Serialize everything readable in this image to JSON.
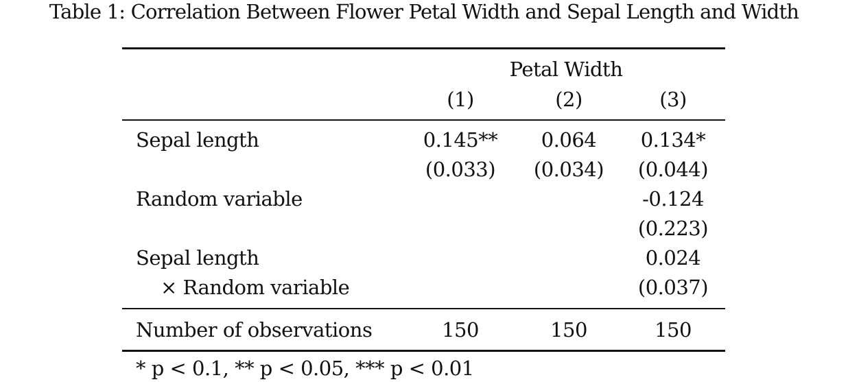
{
  "caption": "Table 1: Correlation Between Flower Petal Width and Sepal Length and Width",
  "table": {
    "dependent_variable": "Petal Width",
    "columns": [
      "(1)",
      "(2)",
      "(3)"
    ],
    "rows": [
      {
        "label": "Sepal length",
        "coef": [
          "0.145**",
          "0.064",
          "0.134*"
        ],
        "se": [
          "(0.033)",
          "(0.034)",
          "(0.044)"
        ]
      },
      {
        "label": "Random variable",
        "coef": [
          "",
          "",
          "-0.124"
        ],
        "se": [
          "",
          "",
          "(0.223)"
        ]
      },
      {
        "label": "Sepal length",
        "label_line2": "× Random variable",
        "coef": [
          "",
          "",
          "0.024"
        ],
        "se": [
          "",
          "",
          "(0.037)"
        ]
      }
    ],
    "observations": {
      "label": "Number of observations",
      "values": [
        "150",
        "150",
        "150"
      ]
    },
    "note": "* p < 0.1, ** p < 0.05, *** p < 0.01"
  }
}
